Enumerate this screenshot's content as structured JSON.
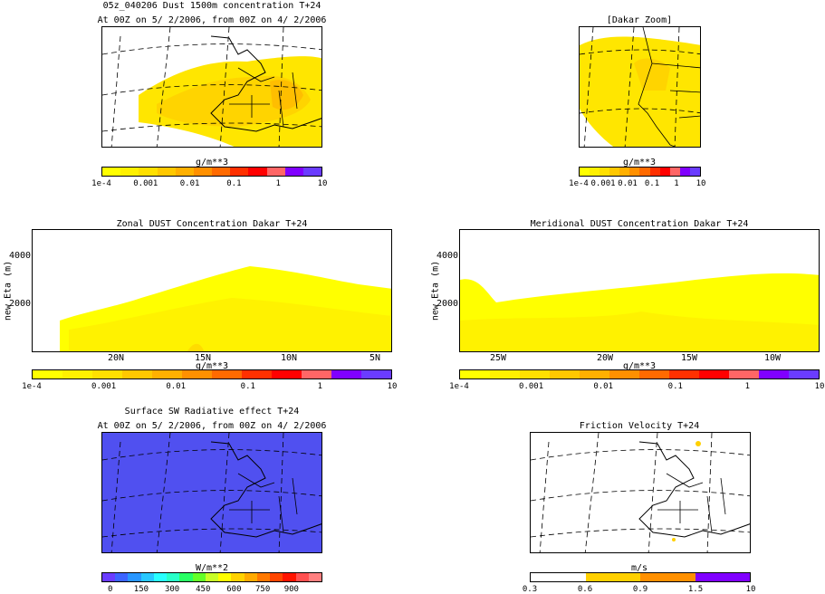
{
  "map1": {
    "title": "05z_040206 Dust 1500m concentration T+24",
    "subtitle": "At 00Z on 5/ 2/2006, from 00Z on 4/ 2/2006",
    "cbar_unit": "g/m**3",
    "cbar_ticks": [
      "1e-4",
      "0.001",
      "0.01",
      "0.1",
      "1",
      "10"
    ]
  },
  "map2": {
    "title": "[Dakar Zoom]",
    "cbar_unit": "g/m**3",
    "cbar_ticks": [
      "1e-4",
      "0.001",
      "0.01",
      "0.1",
      "1",
      "10"
    ]
  },
  "zonal": {
    "title": "Zonal DUST Concentration Dakar T+24",
    "ylabel": "new Eta (m)",
    "yticks": [
      "4000",
      "2000"
    ],
    "xticks": [
      "20N",
      "15N",
      "10N",
      "5N"
    ],
    "cbar_unit": "g/m**3",
    "cbar_ticks": [
      "1e-4",
      "0.001",
      "0.01",
      "0.1",
      "1",
      "10"
    ]
  },
  "meridional": {
    "title": "Meridional DUST Concentration Dakar T+24",
    "ylabel": "new Eta (m)",
    "yticks": [
      "4000",
      "2000"
    ],
    "xticks": [
      "25W",
      "20W",
      "15W",
      "10W"
    ],
    "cbar_unit": "g/m**3",
    "cbar_ticks": [
      "1e-4",
      "0.001",
      "0.01",
      "0.1",
      "1",
      "10"
    ]
  },
  "map3": {
    "title": "Surface SW Radiative effect T+24",
    "subtitle": "At 00Z on 5/ 2/2006, from 00Z on 4/ 2/2006",
    "cbar_unit": "W/m**2",
    "cbar_ticks": [
      "0",
      "150",
      "300",
      "450",
      "600",
      "750",
      "900"
    ]
  },
  "map4": {
    "title": "Friction Velocity T+24",
    "cbar_unit": "m/s",
    "cbar_ticks": [
      "0.3",
      "0.6",
      "0.9",
      "1.5",
      "10"
    ]
  },
  "colors": {
    "dust": [
      "#ffff00",
      "#fff000",
      "#ffe000",
      "#ffc800",
      "#ffb000",
      "#ff9000",
      "#ff6a00",
      "#ff3000",
      "#ff0000",
      "#ff6666",
      "#8000ff",
      "#6a3cff"
    ],
    "sw": [
      "#6a3cff",
      "#3c64ff",
      "#2896ff",
      "#28c8ff",
      "#28ffff",
      "#28ffc8",
      "#28ff64",
      "#64ff28",
      "#c8ff28",
      "#ffff00",
      "#ffd200",
      "#ffaa00",
      "#ff7800",
      "#ff4600",
      "#ff1400",
      "#ff5050",
      "#ff8080"
    ],
    "ustar": [
      "#ffffff",
      "#ffd000",
      "#ff9000",
      "#8000ff"
    ],
    "ocean_dust": "#ffff00",
    "sw_fill": "#5050f0"
  }
}
